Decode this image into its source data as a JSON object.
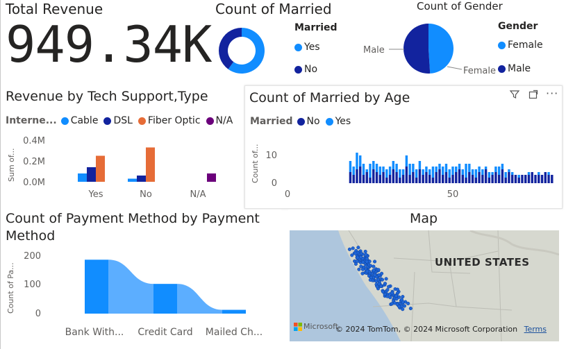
{
  "kpi": {
    "title": "Total Revenue",
    "value": "949.34K"
  },
  "married_donut": {
    "title": "Count of Married",
    "legend_title": "Married",
    "legend": [
      {
        "label": "Yes",
        "color": "#118DFF"
      },
      {
        "label": "No",
        "color": "#12239E"
      }
    ]
  },
  "gender_pie": {
    "title": "Count of Gender",
    "legend_title": "Gender",
    "legend": [
      {
        "label": "Female",
        "color": "#118DFF"
      },
      {
        "label": "Male",
        "color": "#12239E"
      }
    ],
    "slice_labels": {
      "male": "Male",
      "female": "Female"
    }
  },
  "tech_chart": {
    "title": "Revenue by Tech Support,Type",
    "legend_title": "Interne...",
    "ylabel": "Sum of...",
    "yticks": [
      "0.4M",
      "0.2M",
      "0.0M"
    ]
  },
  "age_chart": {
    "title": "Count of Married by Age",
    "legend_title": "Married",
    "ylabel": "Count of...",
    "yticks": [
      "10",
      "0"
    ],
    "xticks": [
      "0",
      "50"
    ]
  },
  "payment_chart": {
    "title_line1": "Count of Payment Method by Payment",
    "title_line2": "Method",
    "ylabel": "Count of Pa...",
    "yticks": [
      "200",
      "100",
      "0"
    ],
    "xtick_labels": [
      "Bank With...",
      "Credit Card",
      "Mailed Ch..."
    ]
  },
  "map": {
    "title": "Map",
    "country_label": "UNITED STATES",
    "brand": "Microsoft",
    "copyright": "© 2024 TomTom, © 2024 Microsoft Corporation",
    "terms": "Terms"
  },
  "chart_data": [
    {
      "type": "pie",
      "title": "Count of Married",
      "donut": true,
      "labels": [
        "Yes",
        "No"
      ],
      "values": [
        60,
        40
      ],
      "colors": [
        "#118DFF",
        "#12239E"
      ]
    },
    {
      "type": "pie",
      "title": "Count of Gender",
      "labels": [
        "Female",
        "Male"
      ],
      "values": [
        49,
        51
      ],
      "colors": [
        "#118DFF",
        "#12239E"
      ]
    },
    {
      "type": "bar",
      "title": "Revenue by Tech Support,Type",
      "categories": [
        "Yes",
        "No",
        "N/A"
      ],
      "series": [
        {
          "name": "Cable",
          "color": "#118DFF",
          "values": [
            0.08,
            0.03,
            0
          ]
        },
        {
          "name": "DSL",
          "color": "#12239E",
          "values": [
            0.14,
            0.06,
            0
          ]
        },
        {
          "name": "Fiber Optic",
          "color": "#E66C37",
          "values": [
            0.25,
            0.33,
            0
          ]
        },
        {
          "name": "N/A",
          "color": "#6B007B",
          "values": [
            0,
            0,
            0.08
          ]
        }
      ],
      "ylim": [
        0,
        0.4
      ]
    },
    {
      "type": "bar",
      "stacked": true,
      "title": "Count of Married by Age",
      "xlim": [
        0,
        80
      ],
      "ylim": [
        0,
        15
      ],
      "ages": [
        19,
        20,
        21,
        22,
        23,
        24,
        25,
        26,
        27,
        28,
        29,
        30,
        31,
        32,
        33,
        34,
        35,
        36,
        37,
        38,
        39,
        40,
        41,
        42,
        43,
        44,
        45,
        46,
        47,
        48,
        49,
        50,
        51,
        52,
        53,
        54,
        55,
        56,
        57,
        58,
        59,
        60,
        61,
        62,
        63,
        64,
        65,
        66,
        67,
        68,
        69,
        70,
        71,
        72,
        73,
        74,
        75,
        76,
        77,
        78,
        79,
        80
      ],
      "series": [
        {
          "name": "No",
          "color": "#12239E",
          "values": [
            4,
            3,
            5,
            6,
            3,
            4,
            2,
            5,
            4,
            3,
            4,
            2,
            3,
            5,
            4,
            2,
            3,
            6,
            3,
            4,
            2,
            5,
            3,
            4,
            3,
            2,
            4,
            5,
            3,
            4,
            2,
            3,
            4,
            5,
            3,
            2,
            4,
            3,
            2,
            4,
            3,
            5,
            2,
            3,
            4,
            3,
            5,
            2,
            4,
            3,
            3,
            2,
            3,
            3,
            3,
            4,
            3,
            3,
            3,
            4,
            3,
            3
          ]
        },
        {
          "name": "Yes",
          "color": "#118DFF",
          "values": [
            4,
            3,
            6,
            4,
            4,
            1,
            5,
            3,
            3,
            3,
            2,
            3,
            3,
            3,
            3,
            3,
            2,
            4,
            4,
            3,
            3,
            3,
            2,
            2,
            2,
            4,
            2,
            2,
            3,
            3,
            3,
            3,
            2,
            2,
            2,
            5,
            3,
            2,
            3,
            2,
            2,
            1,
            2,
            1,
            2,
            3,
            2,
            2,
            1,
            1,
            0,
            1,
            0,
            0,
            1,
            0,
            0,
            1,
            0,
            0,
            1,
            0
          ]
        }
      ]
    },
    {
      "type": "bar",
      "title": "Count of Payment Method by Payment Method",
      "categories": [
        "Bank Withdrawal",
        "Credit Card",
        "Mailed Check"
      ],
      "values": [
        185,
        102,
        13
      ],
      "ylim": [
        0,
        200
      ]
    }
  ]
}
